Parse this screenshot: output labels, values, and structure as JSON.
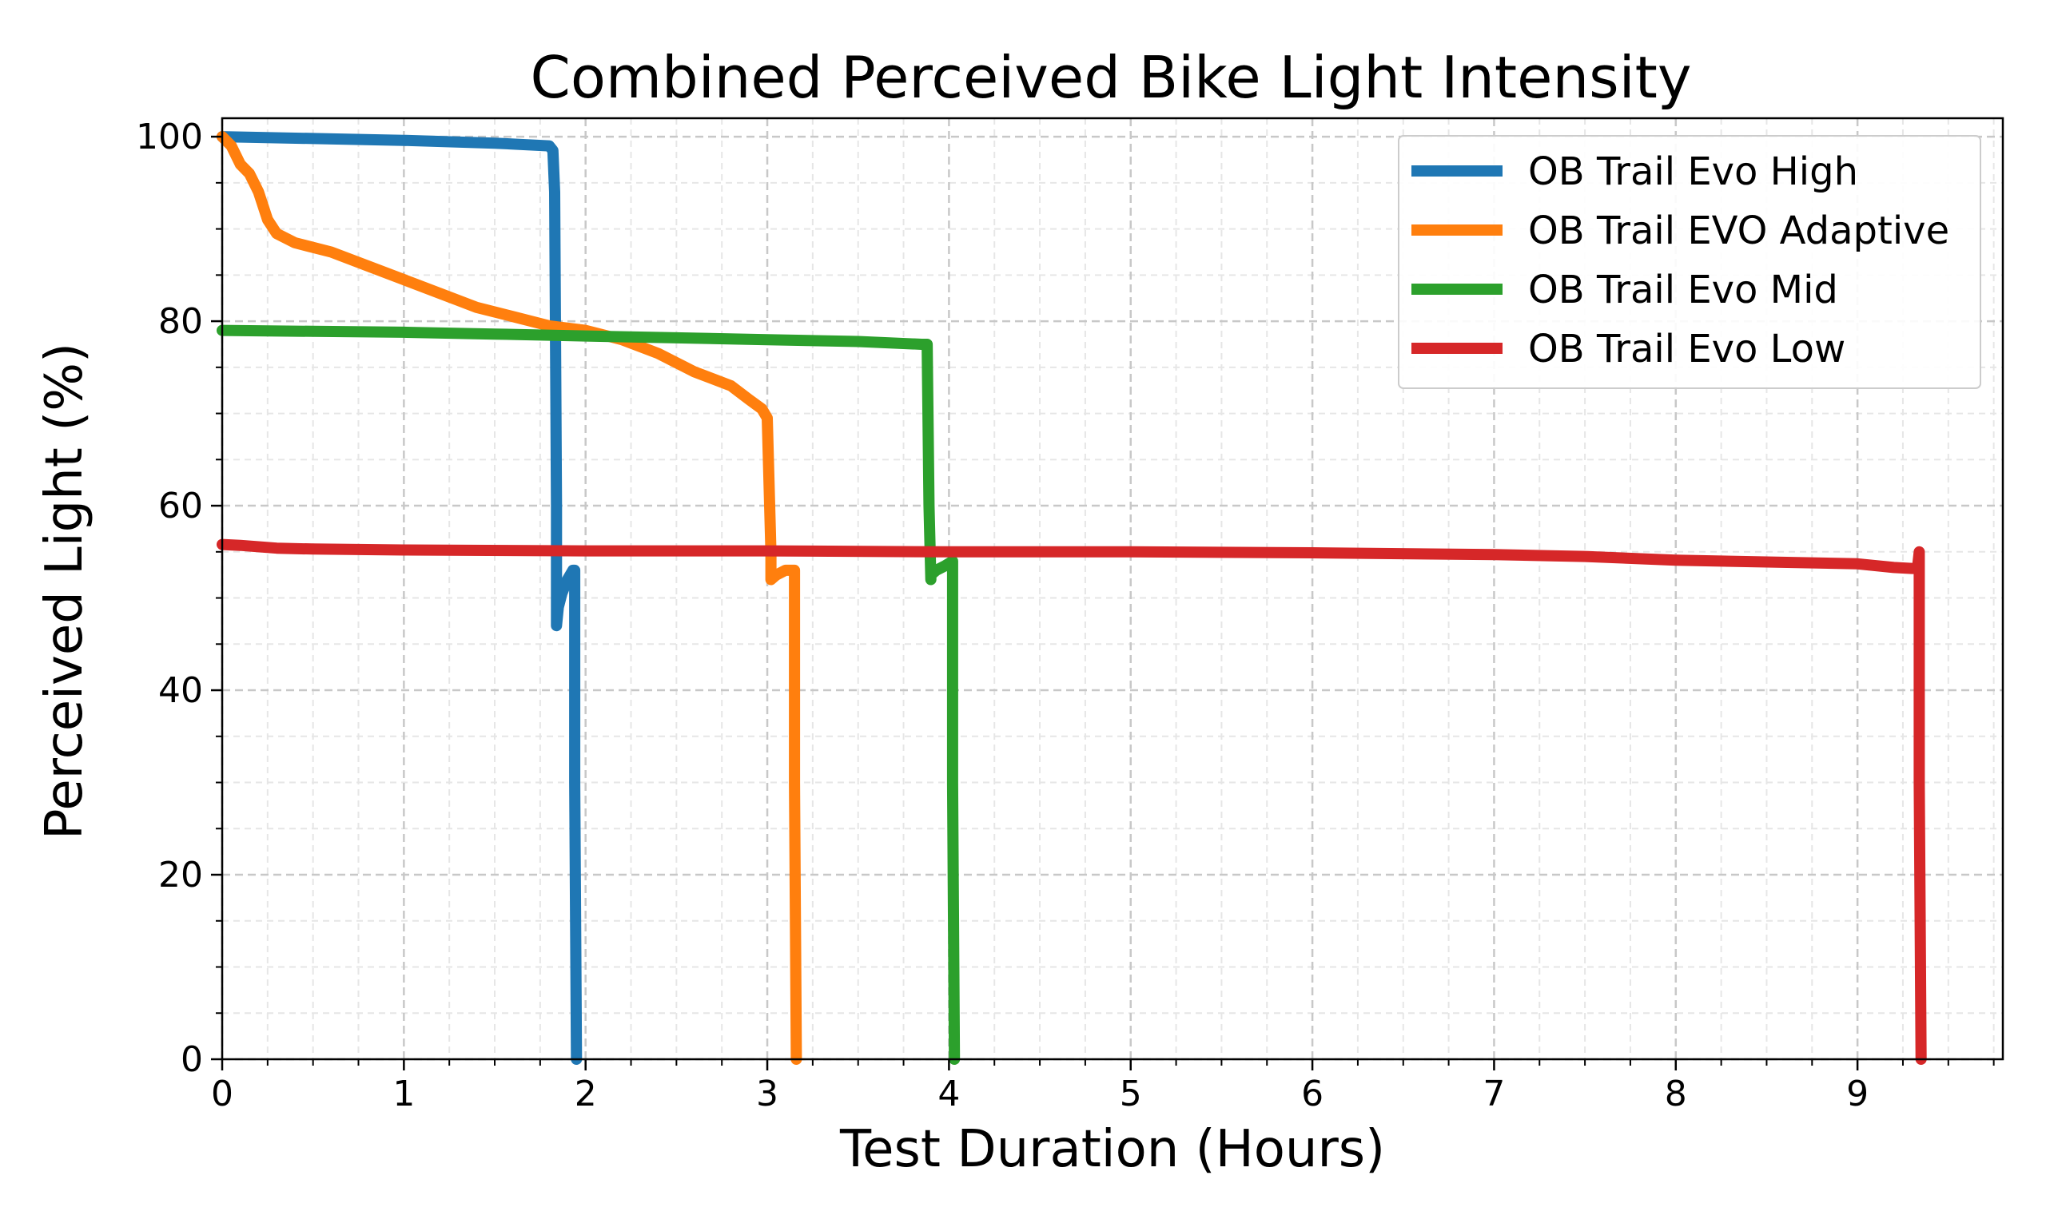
{
  "chart_data": {
    "type": "line",
    "title": "Combined Perceived Bike Light Intensity",
    "xlabel": "Test Duration (Hours)",
    "ylabel": "Perceived Light (%)",
    "xlim": [
      0,
      9.8
    ],
    "ylim": [
      0,
      102
    ],
    "xticks": [
      0,
      1,
      2,
      3,
      4,
      5,
      6,
      7,
      8,
      9
    ],
    "yticks": [
      0,
      20,
      40,
      60,
      80,
      100
    ],
    "grid": true,
    "minor_grid": true,
    "legend_position": "top-right",
    "series": [
      {
        "name": "OB Trail Evo High",
        "color": "#1f77b4",
        "x": [
          0,
          0.5,
          1.0,
          1.5,
          1.8,
          1.82,
          1.83,
          1.84,
          1.84,
          1.85,
          1.87,
          1.9,
          1.93,
          1.94,
          1.94,
          1.95
        ],
        "y": [
          100,
          99.8,
          99.6,
          99.3,
          99.0,
          98.5,
          94,
          60,
          47,
          49,
          50.5,
          52,
          53,
          53,
          30,
          0
        ]
      },
      {
        "name": "OB Trail EVO Adaptive",
        "color": "#ff7f0e",
        "x": [
          0,
          0.05,
          0.1,
          0.15,
          0.2,
          0.25,
          0.3,
          0.4,
          0.6,
          0.8,
          1.0,
          1.2,
          1.4,
          1.6,
          1.8,
          2.0,
          2.2,
          2.4,
          2.6,
          2.8,
          2.9,
          2.97,
          3.0,
          3.02,
          3.02,
          3.05,
          3.1,
          3.14,
          3.15,
          3.15,
          3.16
        ],
        "y": [
          100,
          99,
          97,
          96,
          94,
          91,
          89.5,
          88.5,
          87.5,
          86,
          84.5,
          83,
          81.5,
          80.5,
          79.5,
          79,
          78,
          76.5,
          74.5,
          73,
          71.5,
          70.5,
          69.5,
          55,
          52,
          52.5,
          53,
          53,
          53,
          30,
          0
        ]
      },
      {
        "name": "OB Trail Evo Mid",
        "color": "#2ca02c",
        "x": [
          0,
          0.5,
          1.0,
          1.5,
          2.0,
          2.5,
          3.0,
          3.5,
          3.85,
          3.88,
          3.89,
          3.9,
          3.9,
          3.93,
          3.98,
          4.02,
          4.02,
          4.03
        ],
        "y": [
          79,
          78.9,
          78.8,
          78.6,
          78.4,
          78.2,
          78,
          77.8,
          77.5,
          77.5,
          60,
          52,
          52.5,
          53,
          53.5,
          54,
          30,
          0
        ]
      },
      {
        "name": "OB Trail Evo Low",
        "color": "#d62728",
        "x": [
          0,
          0.1,
          0.3,
          0.5,
          1.0,
          2.0,
          3.0,
          4.0,
          5.0,
          6.0,
          7.0,
          7.5,
          8.0,
          8.5,
          9.0,
          9.2,
          9.3,
          9.33,
          9.34,
          9.34,
          9.35
        ],
        "y": [
          55.8,
          55.7,
          55.4,
          55.3,
          55.2,
          55.1,
          55.1,
          55,
          55,
          54.9,
          54.7,
          54.5,
          54.1,
          53.9,
          53.7,
          53.3,
          53.2,
          53.2,
          55,
          30,
          0
        ]
      }
    ]
  }
}
